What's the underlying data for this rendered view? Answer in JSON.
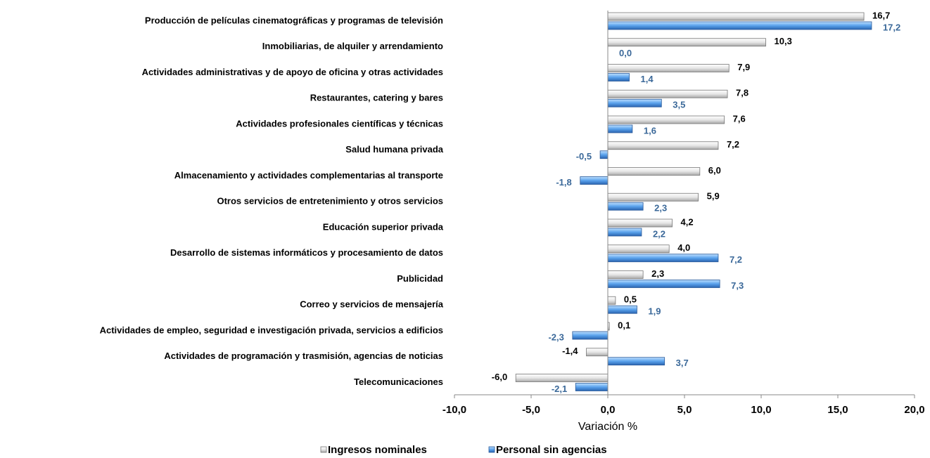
{
  "chart_data": {
    "type": "bar",
    "orientation": "horizontal",
    "categories": [
      "Producción de películas cinematográficas y programas de televisión",
      "Inmobiliarias, de alquiler y arrendamiento",
      "Actividades administrativas y de apoyo de oficina y otras actividades",
      "Restaurantes, catering y bares",
      "Actividades profesionales científicas y técnicas",
      "Salud humana privada",
      "Almacenamiento y actividades complementarias al transporte",
      "Otros servicios de entretenimiento y otros servicios",
      "Educación superior privada",
      "Desarrollo de sistemas informáticos y procesamiento de datos",
      "Publicidad",
      "Correo y servicios de mensajería",
      "Actividades de empleo, seguridad e investigación privada, servicios a edificios",
      "Actividades de programación y trasmisión, agencias de noticias",
      "Telecomunicaciones"
    ],
    "series": [
      {
        "name": "Ingresos nominales",
        "color": "#c8c8c8",
        "label_color": "#000000",
        "values": [
          16.7,
          10.3,
          7.9,
          7.8,
          7.6,
          7.2,
          6.0,
          5.9,
          4.2,
          4.0,
          2.3,
          0.5,
          0.1,
          -1.4,
          -6.0
        ],
        "value_labels": [
          "16,7",
          "10,3",
          "7,9",
          "7,8",
          "7,6",
          "7,2",
          "6,0",
          "5,9",
          "4,2",
          "4,0",
          "2,3",
          "0,5",
          "0,1",
          "-1,4",
          "-6,0"
        ]
      },
      {
        "name": "Personal sin agencias",
        "color": "#4f94de",
        "label_color": "#3a6899",
        "values": [
          17.2,
          0.0,
          1.4,
          3.5,
          1.6,
          -0.5,
          -1.8,
          2.3,
          2.2,
          7.2,
          7.3,
          1.9,
          -2.3,
          3.7,
          -2.1
        ],
        "value_labels": [
          "17,2",
          "0,0",
          "1,4",
          "3,5",
          "1,6",
          "-0,5",
          "-1,8",
          "2,3",
          "2,2",
          "7,2",
          "7,3",
          "1,9",
          "-2,3",
          "3,7",
          "-2,1"
        ]
      }
    ],
    "xlabel": "Variación %",
    "xlim": [
      -10,
      20
    ],
    "xticks": [
      {
        "value": -10,
        "label": "-10,0"
      },
      {
        "value": -5,
        "label": "-5,0"
      },
      {
        "value": 0,
        "label": "0,0"
      },
      {
        "value": 5,
        "label": "5,0"
      },
      {
        "value": 10,
        "label": "10,0"
      },
      {
        "value": 15,
        "label": "15,0"
      },
      {
        "value": 20,
        "label": "20,0"
      }
    ],
    "legend": "bottom"
  }
}
